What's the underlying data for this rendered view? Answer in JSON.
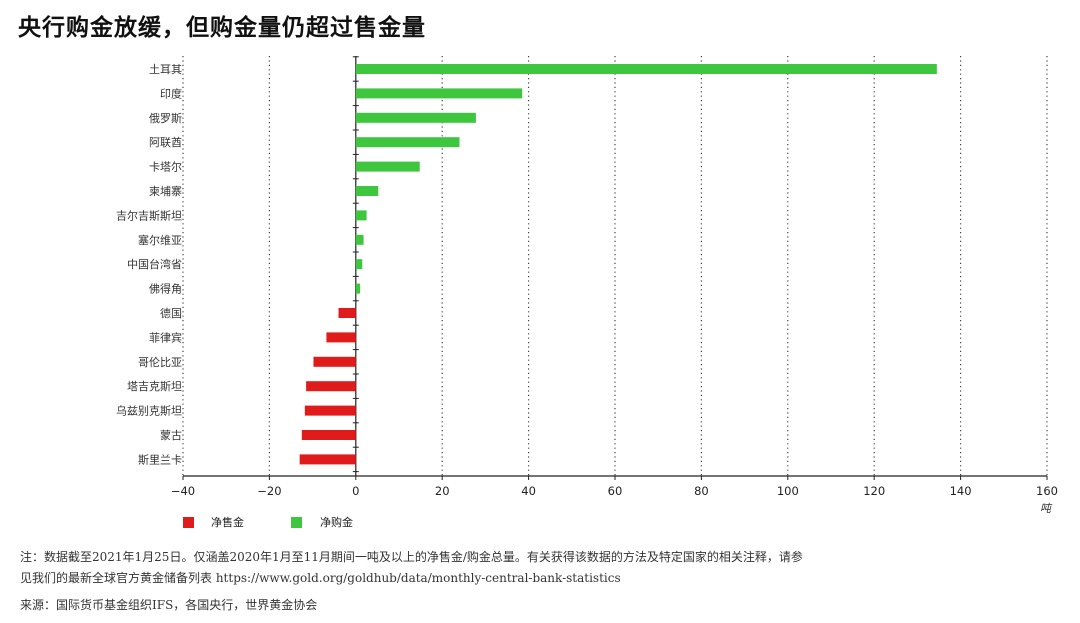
{
  "title": "央行购金放缓，但购金量仍超过售金量",
  "chart_data": {
    "type": "bar",
    "orientation": "horizontal",
    "categories": [
      "土耳其",
      "印度",
      "俄罗斯",
      "阿联酋",
      "卡塔尔",
      "柬埔寨",
      "吉尔吉斯斯坦",
      "塞尔维亚",
      "中国台湾省",
      "佛得角",
      "德国",
      "菲律宾",
      "哥伦比亚",
      "塔吉克斯坦",
      "乌兹别克斯坦",
      "蒙古",
      "斯里兰卡"
    ],
    "values": [
      134.5,
      38.5,
      27.8,
      24,
      14.8,
      5.2,
      2.5,
      1.8,
      1.5,
      1.0,
      -4,
      -6.8,
      -9.8,
      -11.5,
      -11.8,
      -12.5,
      -13
    ],
    "xlim": [
      -40,
      160
    ],
    "xticks": [
      -40,
      -20,
      0,
      20,
      40,
      60,
      80,
      100,
      120,
      140,
      160
    ],
    "unit": "吨",
    "grid": "vertical-dotted",
    "legend": [
      {
        "name": "净售金",
        "color": "#e01b1b"
      },
      {
        "name": "净购金",
        "color": "#3ec63e"
      }
    ]
  },
  "notes": {
    "line1": "注：数据截至2021年1月25日。仅涵盖2020年1月至11月期间一吨及以上的净售金/购金总量。有关获得该数据的方法及特定国家的相关注释，请参",
    "line2": "见我们的最新全球官方黄金储备列表 https://www.gold.org/goldhub/data/monthly-central-bank-statistics",
    "source": "来源：国际货币基金组织IFS，各国央行，世界黄金协会"
  }
}
